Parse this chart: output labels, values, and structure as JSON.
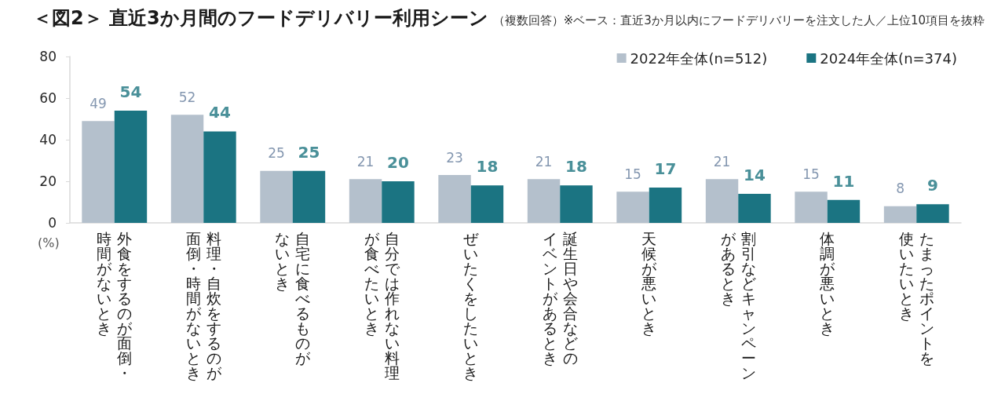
{
  "chart_data": {
    "type": "bar",
    "title": "＜図2＞ 直近3か月間のフードデリバリー利用シーン",
    "subtitle": "（複数回答）※ベース：直近3か月以内にフードデリバリーを注文した人／上位10項目を抜粋",
    "ylabel": "(%)",
    "categories": [
      "外食をするのが面倒・時間がないとき",
      "料理・自炊をするのが面倒・時間がないとき",
      "自宅に食べるものがないとき",
      "自分では作れない料理が食べたいとき",
      "ぜいたくをしたいとき",
      "誕生日や会合などのイベントがあるとき",
      "天候が悪いとき",
      "割引などキャンペーンがあるとき",
      "体調が悪いとき",
      "たまったポイントを使いたいとき"
    ],
    "series": [
      {
        "name": "2022年全体(n=512)",
        "color": "#b4c0cc",
        "values": [
          49,
          52,
          25,
          21,
          23,
          21,
          15,
          21,
          15,
          8
        ]
      },
      {
        "name": "2024年全体(n=374)",
        "color": "#1b7482",
        "values": [
          54,
          44,
          25,
          20,
          18,
          18,
          17,
          14,
          11,
          9
        ]
      }
    ],
    "ylim": [
      0,
      80
    ],
    "yticks": [
      0,
      20,
      40,
      60,
      80
    ],
    "grid": false,
    "legend": "top right",
    "data_labels": true
  }
}
